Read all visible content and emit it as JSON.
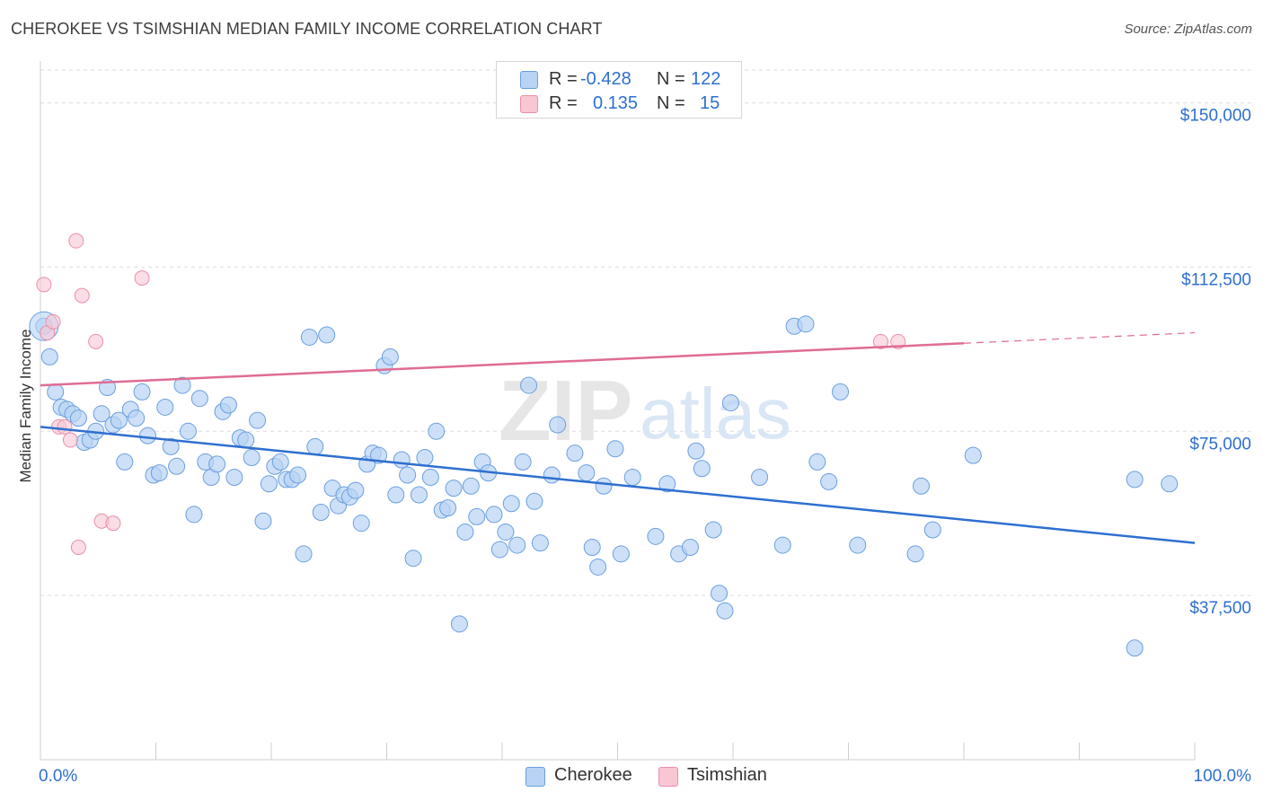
{
  "header": {
    "title": "CHEROKEE VS TSIMSHIAN MEDIAN FAMILY INCOME CORRELATION CHART",
    "source": "Source: ZipAtlas.com"
  },
  "legend": {
    "rows": [
      {
        "r_label": "R =",
        "r_value": "-0.428",
        "n_label": "N =",
        "n_value": "122",
        "color": "#b8d3f3"
      },
      {
        "r_label": "R =",
        "r_value": "0.135",
        "n_label": "N =",
        "n_value": "15",
        "color": "#f9c6d4"
      }
    ]
  },
  "watermark": {
    "zip": "ZIP",
    "atlas": "atlas"
  },
  "bottom_legend": {
    "cherokee": "Cherokee",
    "tsimshian": "Tsimshian"
  },
  "colors": {
    "cherokee_fill": "#b8d3f3",
    "cherokee_stroke": "#6b9fe0",
    "cherokee_line": "#2f6fd0",
    "tsimshian_fill": "#f9c6d4",
    "tsimshian_stroke": "#ea8fab",
    "tsimshian_line": "#e06c94",
    "axis_label": "#2f6fd0",
    "grid": "#dddddd"
  },
  "chart_data": {
    "type": "scatter",
    "title": "CHEROKEE VS TSIMSHIAN MEDIAN FAMILY INCOME CORRELATION CHART",
    "xlabel": "",
    "ylabel": "Median Family Income",
    "xlim": [
      0,
      100
    ],
    "ylim": [
      0,
      157500
    ],
    "x_tick_labels": [
      "0.0%",
      "100.0%"
    ],
    "y_ticks": [
      37500,
      75000,
      112500,
      150000
    ],
    "y_tick_labels": [
      "$37,500",
      "$75,000",
      "$112,500",
      "$150,000"
    ],
    "grid": true,
    "series": [
      {
        "name": "Cherokee",
        "r": -0.428,
        "n": 122,
        "trend": {
          "x": [
            0,
            100
          ],
          "y": [
            76000,
            49500
          ]
        },
        "points": [
          [
            0.3,
            99000
          ],
          [
            0.8,
            92000
          ],
          [
            1.3,
            84000
          ],
          [
            1.8,
            80500
          ],
          [
            2.3,
            80000
          ],
          [
            2.8,
            79000
          ],
          [
            3.3,
            78000
          ],
          [
            3.8,
            72500
          ],
          [
            4.3,
            73000
          ],
          [
            4.8,
            75000
          ],
          [
            5.3,
            79000
          ],
          [
            5.8,
            85000
          ],
          [
            6.3,
            76500
          ],
          [
            6.8,
            77500
          ],
          [
            7.3,
            68000
          ],
          [
            7.8,
            80000
          ],
          [
            8.3,
            78000
          ],
          [
            8.8,
            84000
          ],
          [
            9.3,
            74000
          ],
          [
            9.8,
            65000
          ],
          [
            10.3,
            65500
          ],
          [
            10.8,
            80500
          ],
          [
            11.3,
            71500
          ],
          [
            11.8,
            67000
          ],
          [
            12.3,
            85500
          ],
          [
            12.8,
            75000
          ],
          [
            13.3,
            56000
          ],
          [
            13.8,
            82500
          ],
          [
            14.3,
            68000
          ],
          [
            14.8,
            64500
          ],
          [
            15.3,
            67500
          ],
          [
            15.8,
            79500
          ],
          [
            16.3,
            81000
          ],
          [
            16.8,
            64500
          ],
          [
            17.3,
            73500
          ],
          [
            17.8,
            73000
          ],
          [
            18.3,
            69000
          ],
          [
            18.8,
            77500
          ],
          [
            19.3,
            54500
          ],
          [
            19.8,
            63000
          ],
          [
            20.3,
            67000
          ],
          [
            20.8,
            68000
          ],
          [
            21.3,
            64000
          ],
          [
            21.8,
            64000
          ],
          [
            22.3,
            65000
          ],
          [
            22.8,
            47000
          ],
          [
            23.3,
            96500
          ],
          [
            23.8,
            71500
          ],
          [
            24.3,
            56500
          ],
          [
            24.8,
            97000
          ],
          [
            25.3,
            62000
          ],
          [
            25.8,
            58000
          ],
          [
            26.3,
            60500
          ],
          [
            26.8,
            60000
          ],
          [
            27.3,
            61500
          ],
          [
            27.8,
            54000
          ],
          [
            28.3,
            67500
          ],
          [
            28.8,
            70000
          ],
          [
            29.3,
            69500
          ],
          [
            29.8,
            90000
          ],
          [
            30.3,
            92000
          ],
          [
            30.8,
            60500
          ],
          [
            31.3,
            68500
          ],
          [
            31.8,
            65000
          ],
          [
            32.3,
            46000
          ],
          [
            32.8,
            60500
          ],
          [
            33.3,
            69000
          ],
          [
            33.8,
            64500
          ],
          [
            34.3,
            75000
          ],
          [
            34.8,
            57000
          ],
          [
            35.3,
            57500
          ],
          [
            35.8,
            62000
          ],
          [
            36.3,
            31000
          ],
          [
            36.8,
            52000
          ],
          [
            37.3,
            62500
          ],
          [
            37.8,
            55500
          ],
          [
            38.3,
            68000
          ],
          [
            38.8,
            65500
          ],
          [
            39.3,
            56000
          ],
          [
            39.8,
            48000
          ],
          [
            40.3,
            52000
          ],
          [
            40.8,
            58500
          ],
          [
            41.3,
            49000
          ],
          [
            41.8,
            68000
          ],
          [
            42.3,
            85500
          ],
          [
            42.8,
            59000
          ],
          [
            43.3,
            49500
          ],
          [
            44.3,
            65000
          ],
          [
            44.8,
            76500
          ],
          [
            46.3,
            70000
          ],
          [
            47.3,
            65500
          ],
          [
            47.8,
            48500
          ],
          [
            48.3,
            44000
          ],
          [
            48.8,
            62500
          ],
          [
            49.8,
            71000
          ],
          [
            50.3,
            47000
          ],
          [
            51.3,
            64500
          ],
          [
            53.3,
            51000
          ],
          [
            54.3,
            63000
          ],
          [
            55.3,
            47000
          ],
          [
            56.3,
            48500
          ],
          [
            56.8,
            70500
          ],
          [
            57.3,
            66500
          ],
          [
            58.3,
            52500
          ],
          [
            58.8,
            38000
          ],
          [
            59.3,
            34000
          ],
          [
            59.8,
            81500
          ],
          [
            62.3,
            64500
          ],
          [
            64.3,
            49000
          ],
          [
            65.3,
            99000
          ],
          [
            66.3,
            99500
          ],
          [
            67.3,
            68000
          ],
          [
            68.3,
            63500
          ],
          [
            69.3,
            84000
          ],
          [
            70.8,
            49000
          ],
          [
            75.8,
            47000
          ],
          [
            76.3,
            62500
          ],
          [
            77.3,
            52500
          ],
          [
            80.8,
            69500
          ],
          [
            94.8,
            25500
          ],
          [
            94.8,
            64000
          ],
          [
            97.8,
            63000
          ]
        ]
      },
      {
        "name": "Tsimshian",
        "r": 0.135,
        "n": 15,
        "trend": {
          "x": [
            0,
            100
          ],
          "y": [
            85500,
            97500
          ]
        },
        "points": [
          [
            0.3,
            108500
          ],
          [
            0.6,
            97500
          ],
          [
            1.1,
            100000
          ],
          [
            1.6,
            76000
          ],
          [
            2.1,
            76000
          ],
          [
            2.6,
            73000
          ],
          [
            3.1,
            118500
          ],
          [
            3.3,
            48500
          ],
          [
            3.6,
            106000
          ],
          [
            4.8,
            95500
          ],
          [
            5.3,
            54500
          ],
          [
            6.3,
            54000
          ],
          [
            8.8,
            110000
          ],
          [
            72.8,
            95500
          ],
          [
            74.3,
            95500
          ]
        ]
      }
    ]
  }
}
